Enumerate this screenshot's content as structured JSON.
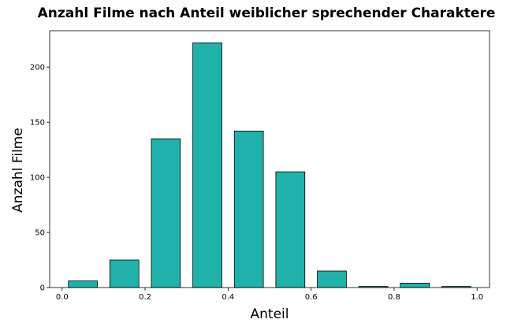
{
  "chart_data": {
    "type": "bar",
    "title": "Anzahl Filme nach Anteil weiblicher sprechender Charaktere",
    "xlabel": "Anteil",
    "ylabel": "Anzahl Filme",
    "xlim": [
      -0.03,
      1.03
    ],
    "ylim": [
      0,
      233
    ],
    "bar_width": 0.07,
    "bar_color": "#20b2aa",
    "x": [
      0.05,
      0.15,
      0.25,
      0.35,
      0.45,
      0.55,
      0.65,
      0.75,
      0.85,
      0.95
    ],
    "values": [
      6,
      25,
      135,
      222,
      142,
      105,
      15,
      1,
      4,
      1
    ],
    "xticks": [
      {
        "value": 0.0,
        "label": "0.0"
      },
      {
        "value": 0.2,
        "label": "0.2"
      },
      {
        "value": 0.4,
        "label": "0.4"
      },
      {
        "value": 0.6,
        "label": "0.6"
      },
      {
        "value": 0.8,
        "label": "0.8"
      },
      {
        "value": 1.0,
        "label": "1.0"
      }
    ],
    "yticks": [
      {
        "value": 0,
        "label": "0"
      },
      {
        "value": 50,
        "label": "50"
      },
      {
        "value": 100,
        "label": "100"
      },
      {
        "value": 150,
        "label": "150"
      },
      {
        "value": 200,
        "label": "200"
      }
    ],
    "grid": false,
    "legend": "none"
  }
}
